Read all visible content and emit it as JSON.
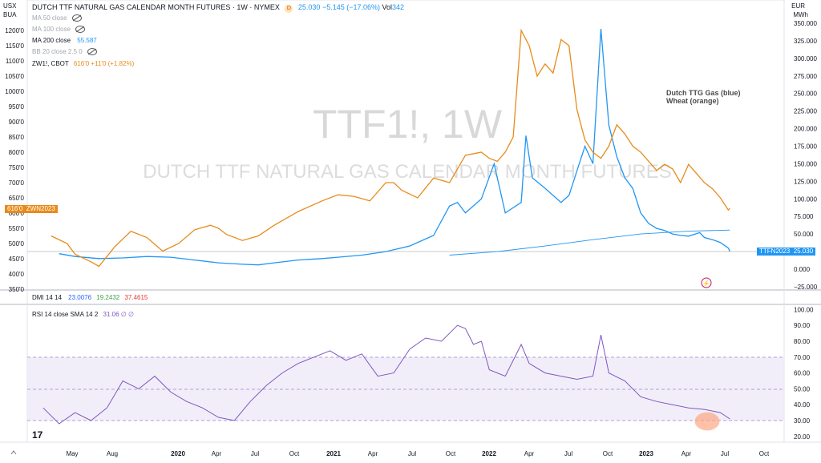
{
  "header": {
    "symbol": "DUTCH TTF NATURAL GAS CALENDAR MONTH FUTURES · 1W · NYMEX",
    "badge_symbol": "D",
    "last": "25.030",
    "change": "−5.145 (−17.06%)",
    "vol_label": "Vol",
    "vol_value": "342",
    "currency_left_top": "USX",
    "currency_left_bot": "BUA",
    "currency_right_top": "EUR",
    "currency_right_bot": "MWh"
  },
  "indicators": {
    "ma50": "MA 50 close",
    "ma100": "MA 100 close",
    "ma200": "MA 200 close",
    "ma200_value": "55.587",
    "bb": "BB 20 close 2.5 0",
    "compare_symbol": "ZW1!, CBOT",
    "compare_value": "616'0 +11'0 (+1.82%)"
  },
  "watermark": {
    "big": "TTF1!, 1W",
    "sub": "DUTCH TTF NATURAL GAS CALENDAR MONTH FUTURES"
  },
  "annotation": {
    "line1": "Dutch TTG Gas (blue)",
    "line2": "Wheat (orange)"
  },
  "tags": {
    "wheat_price": "616'0",
    "wheat_contract": "ZWN2023",
    "gas_contract": "TTFN2023",
    "gas_price": "25.030"
  },
  "colors": {
    "gas": "#2196f3",
    "wheat": "#e88b1a",
    "rsi": "#7e57c2",
    "dmi_blue": "#2962ff",
    "dmi_green": "#43a047",
    "dmi_red": "#e53935"
  },
  "left_axis_ticks": [
    "1200'0",
    "1150'0",
    "1100'0",
    "1050'0",
    "1000'0",
    "950'0",
    "900'0",
    "850'0",
    "800'0",
    "750'0",
    "700'0",
    "650'0",
    "600'0",
    "550'0",
    "500'0",
    "450'0",
    "400'0",
    "350'0"
  ],
  "right_axis_ticks": [
    "350.000",
    "325.000",
    "300.000",
    "275.000",
    "250.000",
    "225.000",
    "200.000",
    "175.000",
    "150.000",
    "125.000",
    "100.000",
    "75.000",
    "50.000",
    "25.000",
    "0.000",
    "−25.000"
  ],
  "rsi_axis_ticks": [
    "100.00",
    "90.00",
    "80.00",
    "70.00",
    "60.00",
    "50.00",
    "40.00",
    "30.00",
    "20.00"
  ],
  "time_axis": [
    {
      "label": "May",
      "bold": false
    },
    {
      "label": "Aug",
      "bold": false
    },
    {
      "label": "2020",
      "bold": true
    },
    {
      "label": "Apr",
      "bold": false
    },
    {
      "label": "Jul",
      "bold": false
    },
    {
      "label": "Oct",
      "bold": false
    },
    {
      "label": "2021",
      "bold": true
    },
    {
      "label": "Apr",
      "bold": false
    },
    {
      "label": "Jul",
      "bold": false
    },
    {
      "label": "Oct",
      "bold": false
    },
    {
      "label": "2022",
      "bold": true
    },
    {
      "label": "Apr",
      "bold": false
    },
    {
      "label": "Jul",
      "bold": false
    },
    {
      "label": "Oct",
      "bold": false
    },
    {
      "label": "2023",
      "bold": true
    },
    {
      "label": "Apr",
      "bold": false
    },
    {
      "label": "Jul",
      "bold": false
    },
    {
      "label": "Oct",
      "bold": false
    }
  ],
  "dmi": {
    "label": "DMI 14 14",
    "v1": "23.0076",
    "v2": "19.2432",
    "v3": "37.4615"
  },
  "rsi": {
    "label": "RSI 14 close SMA 14 2",
    "value": "31.06",
    "na1": "∅",
    "na2": "∅"
  },
  "logo": "17",
  "chart_data": [
    {
      "type": "line",
      "series": [
        {
          "name": "TTF1!",
          "axis": "right",
          "points": [
            [
              2019.25,
              22
            ],
            [
              2019.35,
              18
            ],
            [
              2019.5,
              15
            ],
            [
              2019.65,
              16
            ],
            [
              2019.8,
              18
            ],
            [
              2019.95,
              17
            ],
            [
              2020.1,
              13
            ],
            [
              2020.25,
              9
            ],
            [
              2020.4,
              7
            ],
            [
              2020.5,
              6
            ],
            [
              2020.6,
              9
            ],
            [
              2020.75,
              13
            ],
            [
              2020.9,
              15
            ],
            [
              2021.0,
              17
            ],
            [
              2021.15,
              20
            ],
            [
              2021.3,
              25
            ],
            [
              2021.45,
              33
            ],
            [
              2021.6,
              48
            ],
            [
              2021.7,
              90
            ],
            [
              2021.75,
              95
            ],
            [
              2021.8,
              80
            ],
            [
              2021.9,
              100
            ],
            [
              2021.98,
              150
            ],
            [
              2022.05,
              80
            ],
            [
              2022.15,
              95
            ],
            [
              2022.18,
              190
            ],
            [
              2022.22,
              130
            ],
            [
              2022.3,
              115
            ],
            [
              2022.4,
              95
            ],
            [
              2022.45,
              105
            ],
            [
              2022.5,
              140
            ],
            [
              2022.55,
              175
            ],
            [
              2022.6,
              150
            ],
            [
              2022.65,
              342
            ],
            [
              2022.7,
              205
            ],
            [
              2022.75,
              160
            ],
            [
              2022.8,
              130
            ],
            [
              2022.85,
              115
            ],
            [
              2022.9,
              80
            ],
            [
              2022.95,
              65
            ],
            [
              2023.0,
              58
            ],
            [
              2023.05,
              55
            ],
            [
              2023.1,
              50
            ],
            [
              2023.15,
              48
            ],
            [
              2023.2,
              47
            ],
            [
              2023.27,
              52
            ],
            [
              2023.3,
              45
            ],
            [
              2023.35,
              42
            ],
            [
              2023.4,
              38
            ],
            [
              2023.45,
              30
            ],
            [
              2023.46,
              25
            ]
          ]
        },
        {
          "name": "MA 200 close",
          "axis": "right",
          "points": [
            [
              2021.7,
              20
            ],
            [
              2022.0,
              25
            ],
            [
              2022.3,
              33
            ],
            [
              2022.6,
              42
            ],
            [
              2022.9,
              50
            ],
            [
              2023.2,
              54
            ],
            [
              2023.46,
              55.6
            ]
          ]
        },
        {
          "name": "ZW1!",
          "axis": "left",
          "points": [
            [
              2019.2,
              525
            ],
            [
              2019.3,
              500
            ],
            [
              2019.35,
              465
            ],
            [
              2019.45,
              440
            ],
            [
              2019.5,
              425
            ],
            [
              2019.6,
              490
            ],
            [
              2019.7,
              540
            ],
            [
              2019.8,
              520
            ],
            [
              2019.9,
              475
            ],
            [
              2020.0,
              500
            ],
            [
              2020.1,
              545
            ],
            [
              2020.2,
              560
            ],
            [
              2020.25,
              550
            ],
            [
              2020.3,
              530
            ],
            [
              2020.4,
              510
            ],
            [
              2020.5,
              525
            ],
            [
              2020.6,
              560
            ],
            [
              2020.75,
              605
            ],
            [
              2020.9,
              640
            ],
            [
              2021.0,
              660
            ],
            [
              2021.1,
              655
            ],
            [
              2021.2,
              640
            ],
            [
              2021.3,
              700
            ],
            [
              2021.35,
              700
            ],
            [
              2021.4,
              675
            ],
            [
              2021.5,
              650
            ],
            [
              2021.6,
              715
            ],
            [
              2021.7,
              700
            ],
            [
              2021.8,
              790
            ],
            [
              2021.9,
              800
            ],
            [
              2021.95,
              780
            ],
            [
              2022.0,
              770
            ],
            [
              2022.05,
              800
            ],
            [
              2022.1,
              850
            ],
            [
              2022.15,
              1200
            ],
            [
              2022.2,
              1150
            ],
            [
              2022.25,
              1050
            ],
            [
              2022.3,
              1090
            ],
            [
              2022.35,
              1060
            ],
            [
              2022.4,
              1170
            ],
            [
              2022.45,
              1150
            ],
            [
              2022.5,
              940
            ],
            [
              2022.55,
              840
            ],
            [
              2022.6,
              800
            ],
            [
              2022.65,
              780
            ],
            [
              2022.7,
              820
            ],
            [
              2022.75,
              890
            ],
            [
              2022.8,
              860
            ],
            [
              2022.85,
              820
            ],
            [
              2022.9,
              800
            ],
            [
              2022.95,
              770
            ],
            [
              2023.0,
              740
            ],
            [
              2023.05,
              760
            ],
            [
              2023.1,
              745
            ],
            [
              2023.15,
              700
            ],
            [
              2023.2,
              760
            ],
            [
              2023.25,
              730
            ],
            [
              2023.3,
              700
            ],
            [
              2023.35,
              680
            ],
            [
              2023.4,
              650
            ],
            [
              2023.45,
              610
            ],
            [
              2023.46,
              616
            ]
          ]
        }
      ]
    },
    {
      "type": "line",
      "series": [
        {
          "name": "RSI",
          "points": [
            [
              2019.15,
              38
            ],
            [
              2019.25,
              28
            ],
            [
              2019.35,
              35
            ],
            [
              2019.45,
              30
            ],
            [
              2019.55,
              38
            ],
            [
              2019.65,
              55
            ],
            [
              2019.75,
              50
            ],
            [
              2019.85,
              58
            ],
            [
              2019.95,
              48
            ],
            [
              2020.05,
              42
            ],
            [
              2020.15,
              38
            ],
            [
              2020.25,
              32
            ],
            [
              2020.35,
              30
            ],
            [
              2020.45,
              42
            ],
            [
              2020.55,
              52
            ],
            [
              2020.65,
              60
            ],
            [
              2020.75,
              66
            ],
            [
              2020.85,
              70
            ],
            [
              2020.95,
              74
            ],
            [
              2021.05,
              68
            ],
            [
              2021.15,
              72
            ],
            [
              2021.25,
              58
            ],
            [
              2021.35,
              60
            ],
            [
              2021.45,
              75
            ],
            [
              2021.55,
              82
            ],
            [
              2021.65,
              80
            ],
            [
              2021.75,
              90
            ],
            [
              2021.8,
              88
            ],
            [
              2021.85,
              78
            ],
            [
              2021.9,
              80
            ],
            [
              2021.95,
              62
            ],
            [
              2022.05,
              58
            ],
            [
              2022.15,
              78
            ],
            [
              2022.2,
              66
            ],
            [
              2022.3,
              60
            ],
            [
              2022.4,
              58
            ],
            [
              2022.5,
              56
            ],
            [
              2022.6,
              58
            ],
            [
              2022.65,
              84
            ],
            [
              2022.7,
              60
            ],
            [
              2022.8,
              55
            ],
            [
              2022.9,
              45
            ],
            [
              2023.0,
              42
            ],
            [
              2023.1,
              40
            ],
            [
              2023.2,
              38
            ],
            [
              2023.3,
              37
            ],
            [
              2023.4,
              35
            ],
            [
              2023.46,
              31
            ]
          ]
        }
      ],
      "upper_band": 70,
      "lower_band": 30
    }
  ]
}
